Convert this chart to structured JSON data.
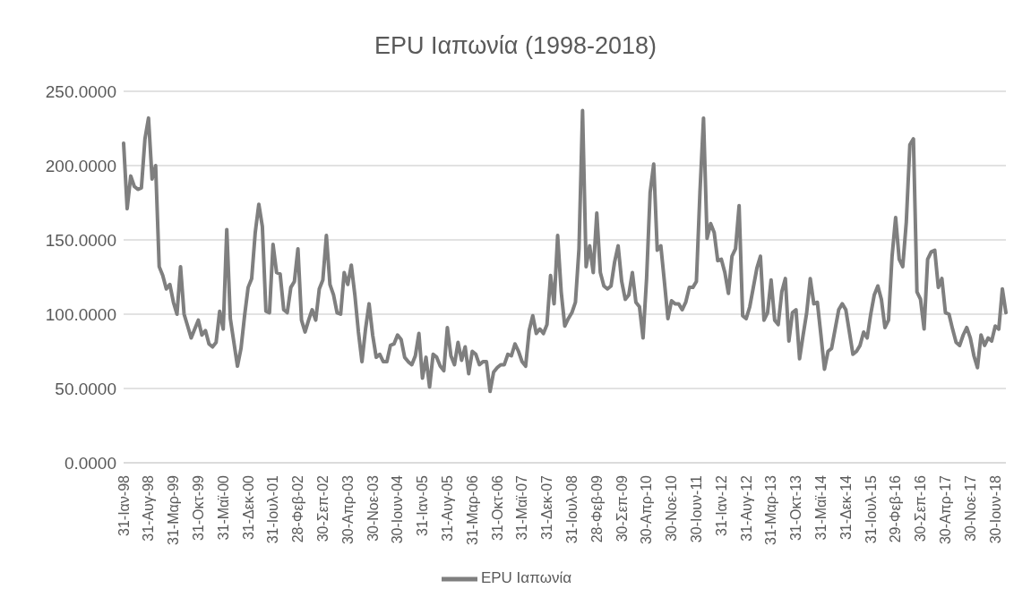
{
  "chart_data": {
    "type": "line",
    "title": "EPU Ιαπωνία (1998-2018)",
    "categories": [
      "31-Ιαν-98",
      null,
      null,
      null,
      null,
      null,
      null,
      "31-Αυγ-98",
      null,
      null,
      null,
      null,
      null,
      null,
      "31-Μαρ-99",
      null,
      null,
      null,
      null,
      null,
      null,
      "31-Οκτ-99",
      null,
      null,
      null,
      null,
      null,
      null,
      "31-Μαϊ-00",
      null,
      null,
      null,
      null,
      null,
      null,
      "31-Δεκ-00",
      null,
      null,
      null,
      null,
      null,
      null,
      "31-Ιουλ-01",
      null,
      null,
      null,
      null,
      null,
      null,
      "28-Φεβ-02",
      null,
      null,
      null,
      null,
      null,
      null,
      "30-Σεπ-02",
      null,
      null,
      null,
      null,
      null,
      null,
      "30-Απρ-03",
      null,
      null,
      null,
      null,
      null,
      null,
      "30-Νοε-03",
      null,
      null,
      null,
      null,
      null,
      null,
      "30-Ιουν-04",
      null,
      null,
      null,
      null,
      null,
      null,
      "31-Ιαν-05",
      null,
      null,
      null,
      null,
      null,
      null,
      "31-Αυγ-05",
      null,
      null,
      null,
      null,
      null,
      null,
      "31-Μαρ-06",
      null,
      null,
      null,
      null,
      null,
      null,
      "31-Οκτ-06",
      null,
      null,
      null,
      null,
      null,
      null,
      "31-Μαϊ-07",
      null,
      null,
      null,
      null,
      null,
      null,
      "31-Δεκ-07",
      null,
      null,
      null,
      null,
      null,
      null,
      "31-Ιουλ-08",
      null,
      null,
      null,
      null,
      null,
      null,
      "28-Φεβ-09",
      null,
      null,
      null,
      null,
      null,
      null,
      "30-Σεπ-09",
      null,
      null,
      null,
      null,
      null,
      null,
      "30-Απρ-10",
      null,
      null,
      null,
      null,
      null,
      null,
      "30-Νοε-10",
      null,
      null,
      null,
      null,
      null,
      null,
      "30-Ιουν-11",
      null,
      null,
      null,
      null,
      null,
      null,
      "31-Ιαν-12",
      null,
      null,
      null,
      null,
      null,
      null,
      "31-Αυγ-12",
      null,
      null,
      null,
      null,
      null,
      null,
      "31-Μαρ-13",
      null,
      null,
      null,
      null,
      null,
      null,
      "31-Οκτ-13",
      null,
      null,
      null,
      null,
      null,
      null,
      "31-Μαϊ-14",
      null,
      null,
      null,
      null,
      null,
      null,
      "31-Δεκ-14",
      null,
      null,
      null,
      null,
      null,
      null,
      "31-Ιουλ-15",
      null,
      null,
      null,
      null,
      null,
      null,
      "29-Φεβ-16",
      null,
      null,
      null,
      null,
      null,
      null,
      "30-Σεπ-16",
      null,
      null,
      null,
      null,
      null,
      null,
      "30-Απρ-17",
      null,
      null,
      null,
      null,
      null,
      null,
      "30-Νοε-17",
      null,
      null,
      null,
      null,
      null,
      null,
      "30-Ιουν-18",
      null,
      null,
      null
    ],
    "series": [
      {
        "name": "EPU Ιαπωνία",
        "color": "#7f7f7f",
        "values": [
          215,
          171,
          193,
          186,
          184,
          185,
          218,
          232,
          191,
          200,
          132,
          126,
          117,
          120,
          108,
          100,
          132,
          100,
          92,
          84,
          90,
          96,
          86,
          89,
          80,
          78,
          81,
          102,
          90,
          157,
          97,
          81,
          65,
          77,
          99,
          118,
          124,
          155,
          174,
          159,
          102,
          101,
          147,
          128,
          127,
          103,
          101,
          118,
          122,
          144,
          96,
          88,
          96,
          103,
          96,
          117,
          123,
          153,
          120,
          113,
          101,
          100,
          128,
          120,
          133,
          113,
          88,
          68,
          90,
          107,
          86,
          71,
          73,
          68,
          68,
          79,
          80,
          86,
          83,
          71,
          68,
          66,
          72,
          87,
          57,
          71,
          51,
          73,
          71,
          65,
          62,
          91,
          72,
          66,
          81,
          69,
          78,
          60,
          75,
          73,
          66,
          68,
          68,
          48,
          61,
          64,
          66,
          66,
          73,
          72,
          80,
          75,
          68,
          65,
          89,
          99,
          87,
          90,
          87,
          93,
          126,
          107,
          153,
          115,
          92,
          97,
          101,
          108,
          144,
          237,
          132,
          146,
          128,
          168,
          128,
          119,
          117,
          119,
          135,
          146,
          122,
          110,
          113,
          128,
          108,
          105,
          84,
          124,
          182,
          201,
          143,
          146,
          122,
          97,
          109,
          107,
          107,
          103,
          108,
          118,
          118,
          122,
          182,
          232,
          151,
          161,
          155,
          136,
          137,
          128,
          114,
          139,
          144,
          173,
          99,
          97,
          105,
          118,
          131,
          139,
          96,
          101,
          123,
          96,
          93,
          115,
          124,
          82,
          101,
          103,
          70,
          86,
          101,
          124,
          107,
          108,
          86,
          63,
          75,
          77,
          90,
          103,
          107,
          103,
          88,
          73,
          75,
          79,
          88,
          84,
          100,
          113,
          119,
          110,
          91,
          96,
          139,
          165,
          137,
          132,
          162,
          214,
          218,
          115,
          110,
          90,
          137,
          142,
          143,
          118,
          124,
          101,
          100,
          90,
          81,
          79,
          86,
          91,
          84,
          72,
          64,
          86,
          79,
          84,
          82,
          92,
          90,
          117,
          101
        ]
      }
    ],
    "ylim": [
      0,
      250
    ],
    "yticks": [
      {
        "value": 0,
        "label": "0.0000"
      },
      {
        "value": 50,
        "label": "50.0000"
      },
      {
        "value": 100,
        "label": "100.0000"
      },
      {
        "value": 150,
        "label": "150.0000"
      },
      {
        "value": 200,
        "label": "200.0000"
      },
      {
        "value": 250,
        "label": "250.0000"
      }
    ],
    "grid": "y",
    "legend": "bottom"
  }
}
